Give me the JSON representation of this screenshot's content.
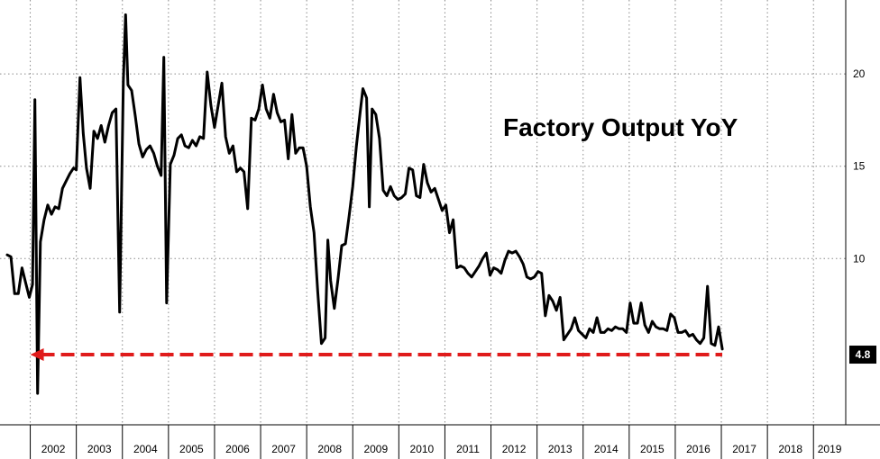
{
  "chart_data": {
    "type": "line",
    "title": "Factory Output YoY",
    "xlabel": "",
    "ylabel": "",
    "x_range": [
      2001.5,
      2019.7
    ],
    "ylim": [
      1,
      24
    ],
    "y_ticks": [
      10,
      15,
      20
    ],
    "x_tick_labels": [
      "2002",
      "2003",
      "2004",
      "2005",
      "2006",
      "2007",
      "2008",
      "2009",
      "2010",
      "2011",
      "2012",
      "2013",
      "2014",
      "2015",
      "2016",
      "2017",
      "2018",
      "2019"
    ],
    "x_tick_values": [
      2002,
      2003,
      2004,
      2005,
      2006,
      2007,
      2008,
      2009,
      2010,
      2011,
      2012,
      2013,
      2014,
      2015,
      2016,
      2017,
      2018,
      2019
    ],
    "reference_line": {
      "value": 4.8,
      "label": "4.8",
      "from": 2002.0
    },
    "series": [
      {
        "name": "Factory Output YoY",
        "points": [
          [
            2001.5,
            10.2
          ],
          [
            2001.58,
            10.1
          ],
          [
            2001.66,
            8.1
          ],
          [
            2001.74,
            8.1
          ],
          [
            2001.82,
            9.5
          ],
          [
            2001.9,
            8.7
          ],
          [
            2001.98,
            7.9
          ],
          [
            2002.05,
            8.6
          ],
          [
            2002.1,
            18.6
          ],
          [
            2002.16,
            2.7
          ],
          [
            2002.22,
            10.9
          ],
          [
            2002.3,
            12.1
          ],
          [
            2002.38,
            12.9
          ],
          [
            2002.46,
            12.4
          ],
          [
            2002.54,
            12.8
          ],
          [
            2002.62,
            12.7
          ],
          [
            2002.7,
            13.8
          ],
          [
            2002.78,
            14.2
          ],
          [
            2002.86,
            14.6
          ],
          [
            2002.94,
            14.9
          ],
          [
            2003.0,
            14.8
          ],
          [
            2003.08,
            19.8
          ],
          [
            2003.15,
            16.8
          ],
          [
            2003.22,
            14.9
          ],
          [
            2003.3,
            13.8
          ],
          [
            2003.38,
            16.9
          ],
          [
            2003.46,
            16.5
          ],
          [
            2003.54,
            17.2
          ],
          [
            2003.62,
            16.3
          ],
          [
            2003.7,
            17.2
          ],
          [
            2003.78,
            17.9
          ],
          [
            2003.86,
            18.1
          ],
          [
            2003.94,
            7.1
          ],
          [
            2004.02,
            19.6
          ],
          [
            2004.07,
            23.2
          ],
          [
            2004.12,
            19.4
          ],
          [
            2004.2,
            19.1
          ],
          [
            2004.28,
            17.7
          ],
          [
            2004.36,
            16.2
          ],
          [
            2004.44,
            15.5
          ],
          [
            2004.52,
            15.9
          ],
          [
            2004.6,
            16.1
          ],
          [
            2004.68,
            15.7
          ],
          [
            2004.76,
            15.0
          ],
          [
            2004.84,
            14.5
          ],
          [
            2004.9,
            20.9
          ],
          [
            2004.96,
            7.6
          ],
          [
            2005.04,
            15.1
          ],
          [
            2005.12,
            15.6
          ],
          [
            2005.2,
            16.5
          ],
          [
            2005.28,
            16.7
          ],
          [
            2005.36,
            16.1
          ],
          [
            2005.44,
            16.0
          ],
          [
            2005.52,
            16.4
          ],
          [
            2005.6,
            16.1
          ],
          [
            2005.68,
            16.6
          ],
          [
            2005.76,
            16.5
          ],
          [
            2005.84,
            20.1
          ],
          [
            2005.92,
            18.3
          ],
          [
            2006.0,
            17.1
          ],
          [
            2006.08,
            18.3
          ],
          [
            2006.16,
            19.5
          ],
          [
            2006.24,
            16.6
          ],
          [
            2006.32,
            15.7
          ],
          [
            2006.4,
            16.1
          ],
          [
            2006.48,
            14.7
          ],
          [
            2006.56,
            14.9
          ],
          [
            2006.64,
            14.7
          ],
          [
            2006.72,
            12.7
          ],
          [
            2006.8,
            17.6
          ],
          [
            2006.88,
            17.5
          ],
          [
            2006.96,
            18.1
          ],
          [
            2007.04,
            19.4
          ],
          [
            2007.12,
            18.1
          ],
          [
            2007.2,
            17.6
          ],
          [
            2007.28,
            18.9
          ],
          [
            2007.36,
            17.9
          ],
          [
            2007.44,
            17.4
          ],
          [
            2007.52,
            17.5
          ],
          [
            2007.6,
            15.4
          ],
          [
            2007.68,
            17.8
          ],
          [
            2007.76,
            15.7
          ],
          [
            2007.84,
            16.0
          ],
          [
            2007.92,
            16.0
          ],
          [
            2008.0,
            15.0
          ],
          [
            2008.08,
            12.8
          ],
          [
            2008.16,
            11.4
          ],
          [
            2008.24,
            8.2
          ],
          [
            2008.32,
            5.4
          ],
          [
            2008.4,
            5.7
          ],
          [
            2008.46,
            11.0
          ],
          [
            2008.52,
            8.8
          ],
          [
            2008.6,
            7.3
          ],
          [
            2008.68,
            8.9
          ],
          [
            2008.76,
            10.7
          ],
          [
            2008.84,
            10.8
          ],
          [
            2008.92,
            12.3
          ],
          [
            2009.0,
            13.9
          ],
          [
            2009.08,
            16.1
          ],
          [
            2009.16,
            17.9
          ],
          [
            2009.22,
            19.2
          ],
          [
            2009.3,
            18.7
          ],
          [
            2009.36,
            12.8
          ],
          [
            2009.42,
            18.1
          ],
          [
            2009.5,
            17.8
          ],
          [
            2009.58,
            16.5
          ],
          [
            2009.66,
            13.7
          ],
          [
            2009.74,
            13.4
          ],
          [
            2009.82,
            13.9
          ],
          [
            2009.9,
            13.4
          ],
          [
            2009.98,
            13.2
          ],
          [
            2010.06,
            13.3
          ],
          [
            2010.14,
            13.5
          ],
          [
            2010.22,
            14.9
          ],
          [
            2010.3,
            14.8
          ],
          [
            2010.38,
            13.4
          ],
          [
            2010.46,
            13.3
          ],
          [
            2010.54,
            15.1
          ],
          [
            2010.62,
            14.1
          ],
          [
            2010.7,
            13.6
          ],
          [
            2010.78,
            13.8
          ],
          [
            2010.86,
            13.2
          ],
          [
            2010.94,
            12.6
          ],
          [
            2011.02,
            12.9
          ],
          [
            2011.1,
            11.4
          ],
          [
            2011.18,
            12.1
          ],
          [
            2011.26,
            9.5
          ],
          [
            2011.34,
            9.6
          ],
          [
            2011.42,
            9.5
          ],
          [
            2011.5,
            9.2
          ],
          [
            2011.58,
            9.0
          ],
          [
            2011.66,
            9.3
          ],
          [
            2011.74,
            9.6
          ],
          [
            2011.82,
            10.0
          ],
          [
            2011.9,
            10.3
          ],
          [
            2011.98,
            9.1
          ],
          [
            2012.06,
            9.5
          ],
          [
            2012.14,
            9.4
          ],
          [
            2012.22,
            9.2
          ],
          [
            2012.3,
            9.9
          ],
          [
            2012.38,
            10.4
          ],
          [
            2012.46,
            10.3
          ],
          [
            2012.54,
            10.4
          ],
          [
            2012.62,
            10.1
          ],
          [
            2012.7,
            9.7
          ],
          [
            2012.78,
            9.0
          ],
          [
            2012.86,
            8.9
          ],
          [
            2012.94,
            9.0
          ],
          [
            2013.02,
            9.3
          ],
          [
            2013.1,
            9.2
          ],
          [
            2013.18,
            6.9
          ],
          [
            2013.26,
            8.0
          ],
          [
            2013.34,
            7.7
          ],
          [
            2013.42,
            7.2
          ],
          [
            2013.5,
            7.9
          ],
          [
            2013.58,
            5.6
          ],
          [
            2013.66,
            5.9
          ],
          [
            2013.74,
            6.2
          ],
          [
            2013.82,
            6.8
          ],
          [
            2013.9,
            6.1
          ],
          [
            2013.98,
            5.9
          ],
          [
            2014.06,
            5.7
          ],
          [
            2014.14,
            6.2
          ],
          [
            2014.22,
            6.0
          ],
          [
            2014.3,
            6.8
          ],
          [
            2014.38,
            6.0
          ],
          [
            2014.46,
            6.0
          ],
          [
            2014.54,
            6.2
          ],
          [
            2014.62,
            6.1
          ],
          [
            2014.7,
            6.3
          ],
          [
            2014.78,
            6.2
          ],
          [
            2014.86,
            6.2
          ],
          [
            2014.94,
            6.0
          ],
          [
            2015.02,
            7.6
          ],
          [
            2015.1,
            6.5
          ],
          [
            2015.18,
            6.5
          ],
          [
            2015.26,
            7.6
          ],
          [
            2015.34,
            6.4
          ],
          [
            2015.42,
            6.0
          ],
          [
            2015.5,
            6.6
          ],
          [
            2015.58,
            6.3
          ],
          [
            2015.66,
            6.2
          ],
          [
            2015.74,
            6.2
          ],
          [
            2015.82,
            6.1
          ],
          [
            2015.9,
            7.0
          ],
          [
            2015.98,
            6.8
          ],
          [
            2016.06,
            6.0
          ],
          [
            2016.14,
            6.0
          ],
          [
            2016.22,
            6.1
          ],
          [
            2016.3,
            5.8
          ],
          [
            2016.38,
            5.9
          ],
          [
            2016.46,
            5.6
          ],
          [
            2016.54,
            5.4
          ],
          [
            2016.62,
            5.7
          ],
          [
            2016.7,
            8.5
          ],
          [
            2016.78,
            5.4
          ],
          [
            2016.86,
            5.3
          ],
          [
            2016.94,
            6.3
          ],
          [
            2017.02,
            5.1
          ]
        ]
      }
    ]
  },
  "last_value_badge": "4.8"
}
